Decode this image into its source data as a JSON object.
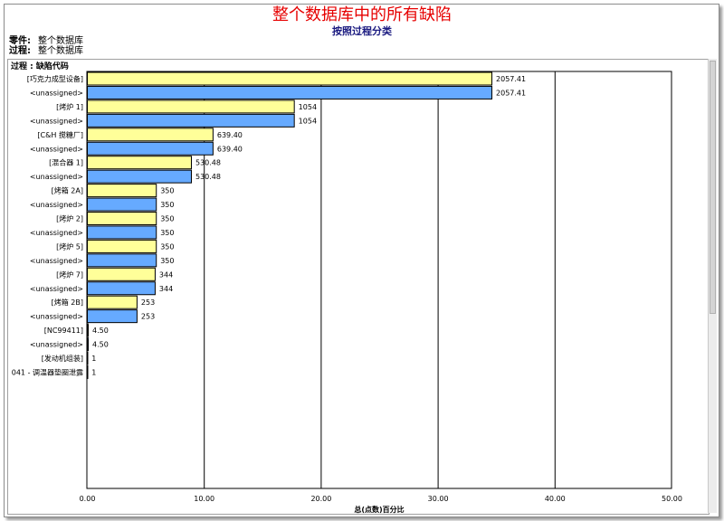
{
  "report": {
    "title": "整个数据库中的所有缺陷",
    "subtitle": "按照过程分类",
    "meta": [
      {
        "label": "零件:",
        "value": "整个数据库"
      },
      {
        "label": "过程:",
        "value": "整个数据库"
      }
    ],
    "group_header": "过程 : 缺陷代码"
  },
  "colors": {
    "title": "#e60000",
    "subtitle": "#1a1a80",
    "process_bar": "#ffff99",
    "defect_bar": "#66aaff"
  },
  "chart_data": {
    "type": "bar",
    "orientation": "horizontal",
    "xlabel": "总(点数)百分比",
    "xlim": [
      0,
      50
    ],
    "xticks": [
      "0.00",
      "10.00",
      "20.00",
      "30.00",
      "40.00",
      "50.00"
    ],
    "grid": true,
    "rows": [
      {
        "label": "[巧克力成型设备]",
        "value": 2057.41,
        "display": "2057.41",
        "pct": 34.6,
        "kind": "process"
      },
      {
        "label": "<unassigned>",
        "value": 2057.41,
        "display": "2057.41",
        "pct": 34.6,
        "kind": "defect"
      },
      {
        "label": "[烤炉 1]",
        "value": 1054,
        "display": "1054",
        "pct": 17.7,
        "kind": "process"
      },
      {
        "label": "<unassigned>",
        "value": 1054,
        "display": "1054",
        "pct": 17.7,
        "kind": "defect"
      },
      {
        "label": "[C&H 搅糖厂]",
        "value": 639.4,
        "display": "639.40",
        "pct": 10.75,
        "kind": "process"
      },
      {
        "label": "<unassigned>",
        "value": 639.4,
        "display": "639.40",
        "pct": 10.75,
        "kind": "defect"
      },
      {
        "label": "[混合器 1]",
        "value": 530.48,
        "display": "530.48",
        "pct": 8.9,
        "kind": "process"
      },
      {
        "label": "<unassigned>",
        "value": 530.48,
        "display": "530.48",
        "pct": 8.9,
        "kind": "defect"
      },
      {
        "label": "[烤箱 2A]",
        "value": 350,
        "display": "350",
        "pct": 5.9,
        "kind": "process"
      },
      {
        "label": "<unassigned>",
        "value": 350,
        "display": "350",
        "pct": 5.9,
        "kind": "defect"
      },
      {
        "label": "[烤炉 2]",
        "value": 350,
        "display": "350",
        "pct": 5.9,
        "kind": "process"
      },
      {
        "label": "<unassigned>",
        "value": 350,
        "display": "350",
        "pct": 5.9,
        "kind": "defect"
      },
      {
        "label": "[烤炉 5]",
        "value": 350,
        "display": "350",
        "pct": 5.9,
        "kind": "process"
      },
      {
        "label": "<unassigned>",
        "value": 350,
        "display": "350",
        "pct": 5.9,
        "kind": "defect"
      },
      {
        "label": "[烤炉 7]",
        "value": 344,
        "display": "344",
        "pct": 5.8,
        "kind": "process"
      },
      {
        "label": "<unassigned>",
        "value": 344,
        "display": "344",
        "pct": 5.8,
        "kind": "defect"
      },
      {
        "label": "[烤箱 2B]",
        "value": 253,
        "display": "253",
        "pct": 4.25,
        "kind": "process"
      },
      {
        "label": "<unassigned>",
        "value": 253,
        "display": "253",
        "pct": 4.25,
        "kind": "defect"
      },
      {
        "label": "[NC99411]",
        "value": 4.5,
        "display": "4.50",
        "pct": 0.08,
        "kind": "process"
      },
      {
        "label": "<unassigned>",
        "value": 4.5,
        "display": "4.50",
        "pct": 0.08,
        "kind": "defect"
      },
      {
        "label": "[发动机组装]",
        "value": 1,
        "display": "1",
        "pct": 0.02,
        "kind": "process"
      },
      {
        "label": "041 - 调温器垫圈泄露",
        "value": 1,
        "display": "1",
        "pct": 0.02,
        "kind": "defect"
      }
    ]
  }
}
